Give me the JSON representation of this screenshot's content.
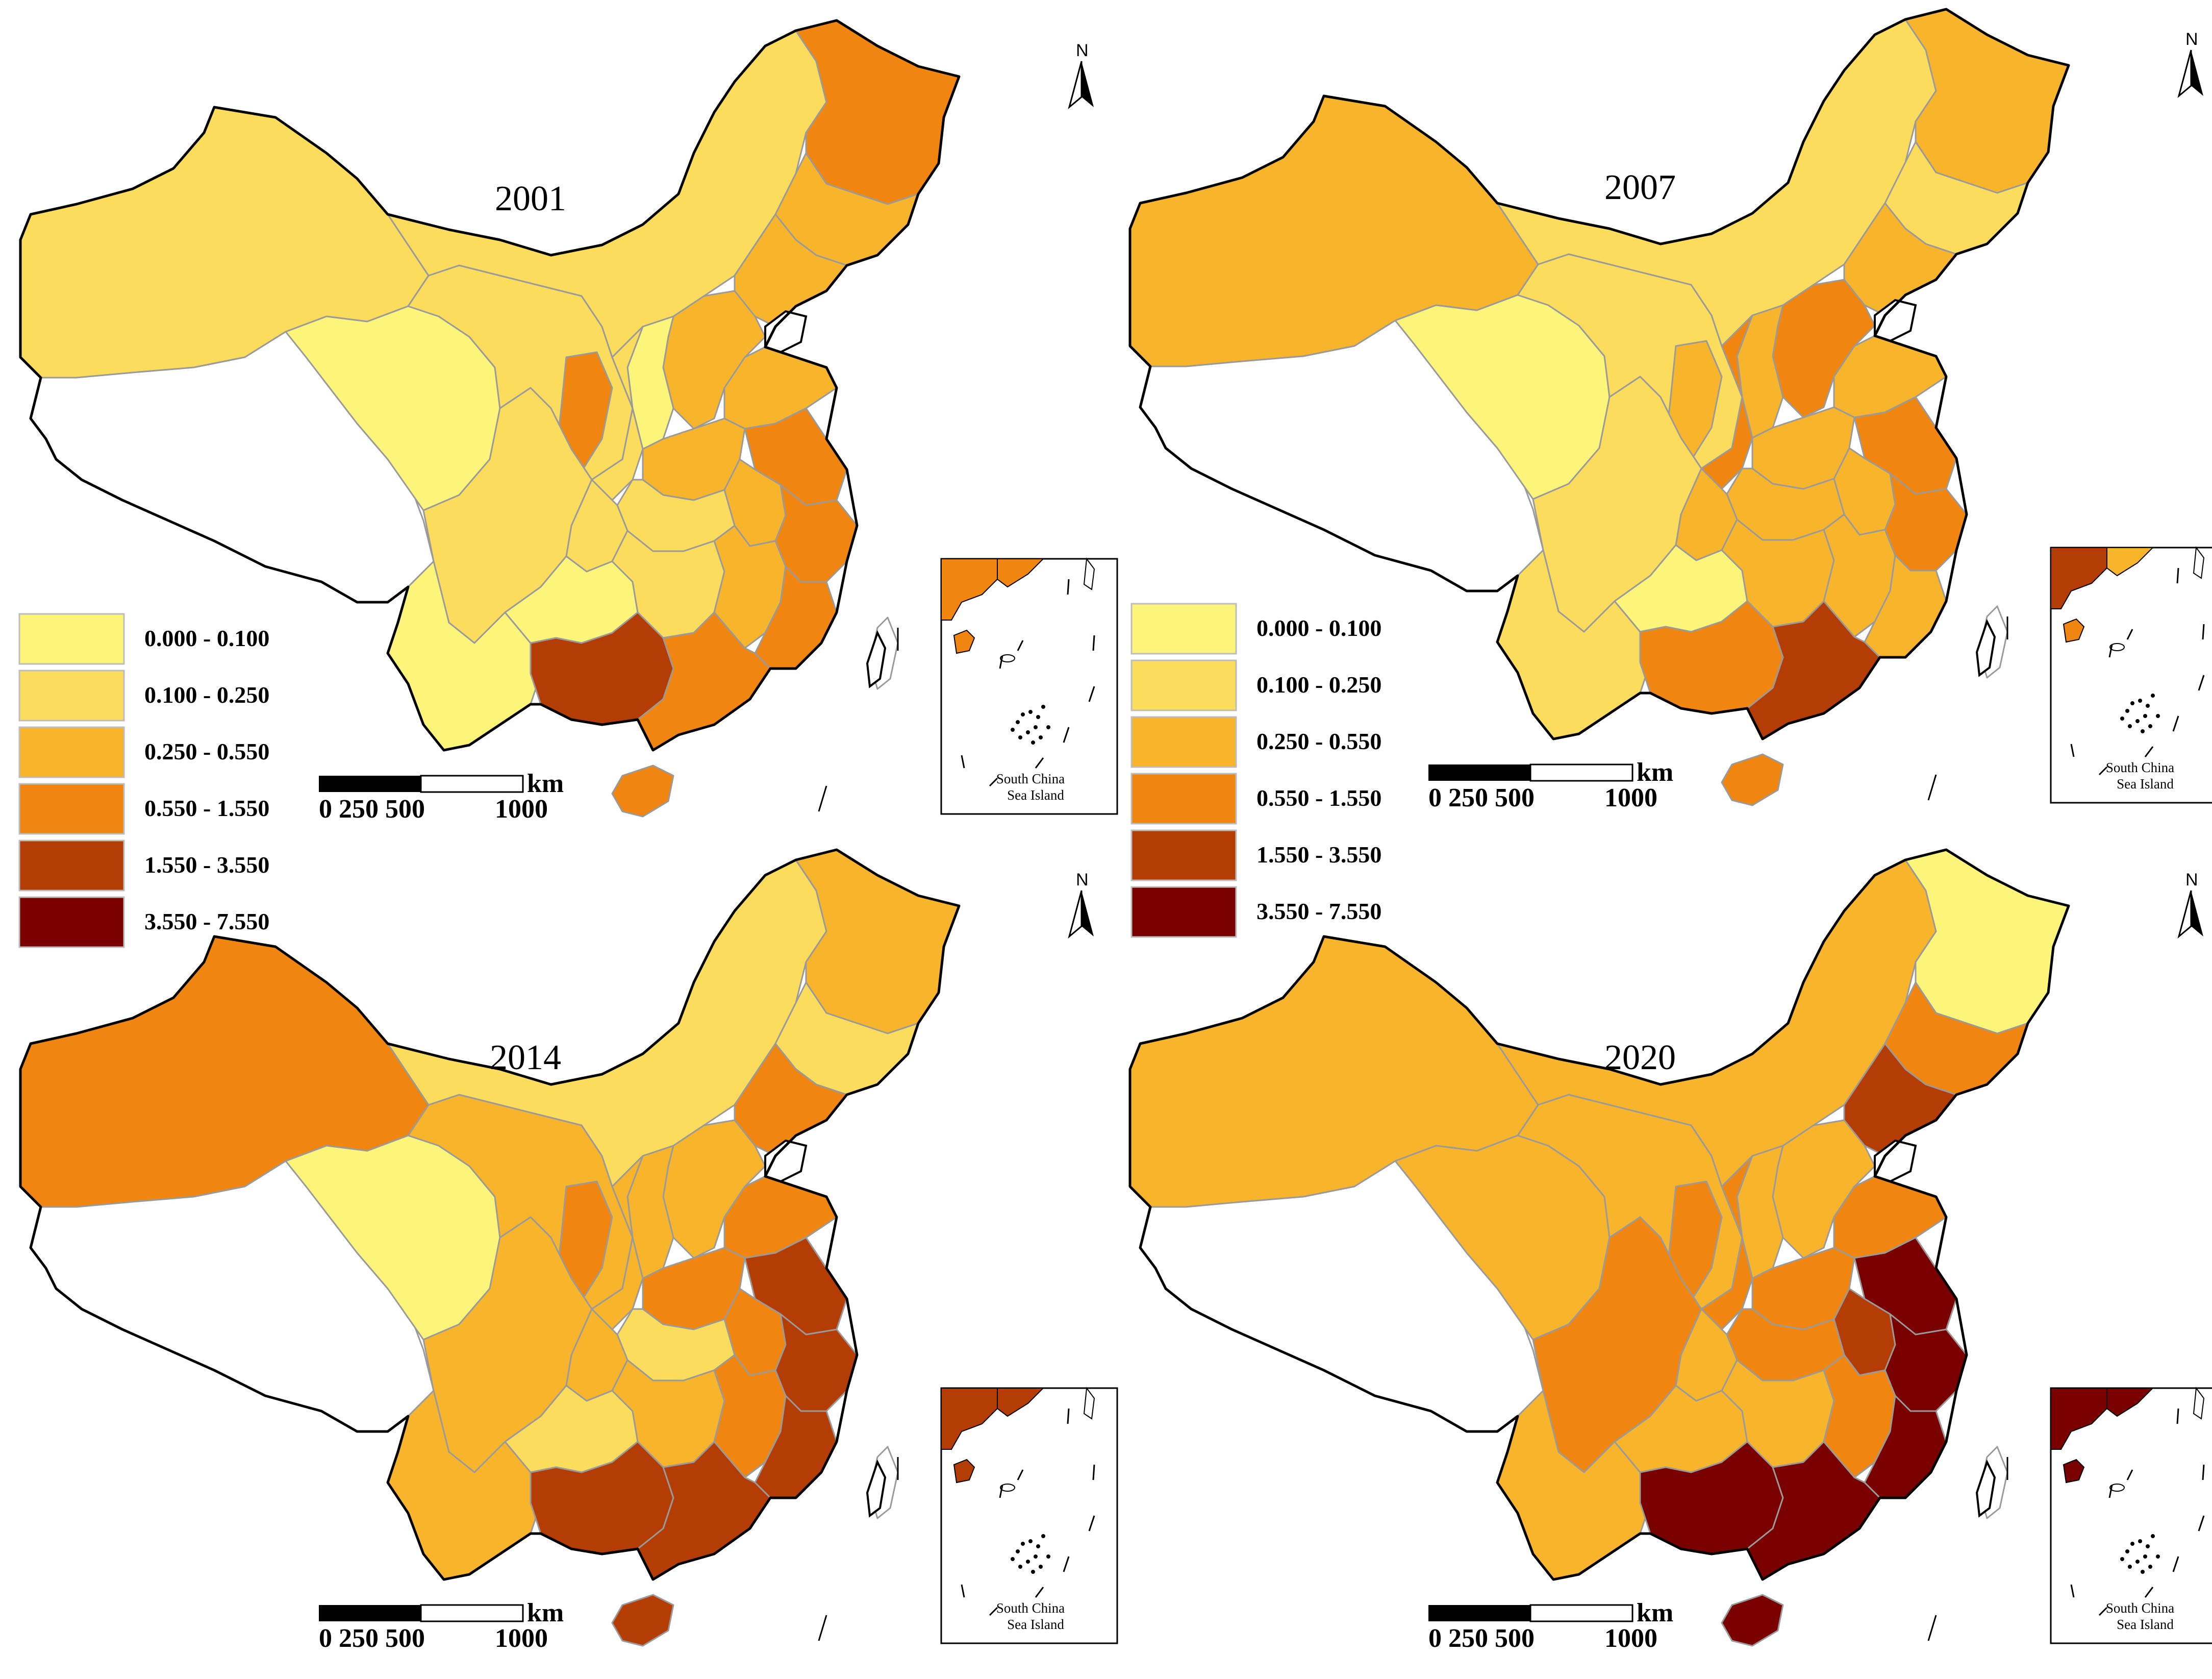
{
  "legend": {
    "classes": [
      {
        "label": "0.000 - 0.100",
        "color": "#fdf57a"
      },
      {
        "label": "0.100 - 0.250",
        "color": "#fbdc5c"
      },
      {
        "label": "0.250 - 0.550",
        "color": "#f8b42a"
      },
      {
        "label": "0.550 - 1.550",
        "color": "#f0850f"
      },
      {
        "label": "1.550 - 3.550",
        "color": "#b43c05"
      },
      {
        "label": "3.550 - 7.550",
        "color": "#7a0000"
      }
    ]
  },
  "colors": {
    "nodata": "#ffffff",
    "border": "#9a9a9a",
    "outline": "#000000"
  },
  "scale_bar": {
    "unit": "km",
    "ticks": "0 250 500",
    "end": "1000"
  },
  "north_label": "N",
  "inset": {
    "line1": "South China",
    "line2": "Sea Island"
  },
  "maps": [
    {
      "year": "2001",
      "classes": {
        "xinjiang": 1,
        "tibet": -1,
        "qinghai": 0,
        "gansu": 1,
        "neimenggu": 1,
        "heilongjiang": 3,
        "jilin": 2,
        "liaoning": 2,
        "beijing": 2,
        "hebei": 2,
        "shanxi": 0,
        "shaanxi": 1,
        "ningxia": 3,
        "shandong": 2,
        "henan": 2,
        "jiangsu": 3,
        "anhui": 2,
        "hubei": 1,
        "chongqing": 1,
        "sichuan": 1,
        "yunnan": 0,
        "guizhou": 0,
        "hunan": 1,
        "jiangxi": 2,
        "zhejiang": 3,
        "fujian": 3,
        "guangxi": 4,
        "guangdong": 3,
        "hainan": 3,
        "taiwan": -1
      }
    },
    {
      "year": "2007",
      "classes": {
        "xinjiang": 2,
        "tibet": -1,
        "qinghai": 0,
        "gansu": 1,
        "neimenggu": 1,
        "heilongjiang": 2,
        "jilin": 1,
        "liaoning": 2,
        "beijing": 3,
        "hebei": 3,
        "shanxi": 2,
        "shaanxi": 3,
        "ningxia": 2,
        "shandong": 2,
        "henan": 2,
        "jiangsu": 3,
        "anhui": 2,
        "hubei": 2,
        "chongqing": 2,
        "sichuan": 1,
        "yunnan": 1,
        "guizhou": 0,
        "hunan": 2,
        "jiangxi": 2,
        "zhejiang": 3,
        "fujian": 2,
        "guangxi": 3,
        "guangdong": 4,
        "hainan": 3,
        "taiwan": -1
      }
    },
    {
      "year": "2014",
      "classes": {
        "xinjiang": 3,
        "tibet": -1,
        "qinghai": 0,
        "gansu": 2,
        "neimenggu": 1,
        "heilongjiang": 2,
        "jilin": 1,
        "liaoning": 3,
        "beijing": 3,
        "hebei": 2,
        "shanxi": 2,
        "shaanxi": 2,
        "ningxia": 3,
        "shandong": 3,
        "henan": 3,
        "jiangsu": 4,
        "anhui": 3,
        "hubei": 1,
        "chongqing": 2,
        "sichuan": 2,
        "yunnan": 2,
        "guizhou": 1,
        "hunan": 2,
        "jiangxi": 3,
        "zhejiang": 4,
        "fujian": 4,
        "guangxi": 4,
        "guangdong": 4,
        "hainan": 4,
        "taiwan": -1
      }
    },
    {
      "year": "2020",
      "classes": {
        "xinjiang": 2,
        "tibet": -1,
        "qinghai": 2,
        "gansu": 2,
        "neimenggu": 2,
        "heilongjiang": 0,
        "jilin": 3,
        "liaoning": 4,
        "beijing": 4,
        "hebei": 2,
        "shanxi": 2,
        "shaanxi": 3,
        "ningxia": 3,
        "shandong": 3,
        "henan": 3,
        "jiangsu": 5,
        "anhui": 4,
        "hubei": 3,
        "chongqing": 2,
        "sichuan": 3,
        "yunnan": 2,
        "guizhou": 2,
        "hunan": 2,
        "jiangxi": 3,
        "zhejiang": 5,
        "fujian": 5,
        "guangxi": 5,
        "guangdong": 5,
        "hainan": 5,
        "taiwan": -1
      }
    }
  ]
}
